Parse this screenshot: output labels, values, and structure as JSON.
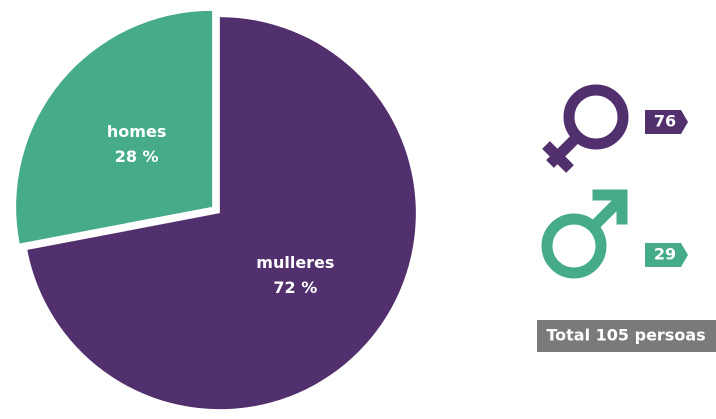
{
  "chart_data": {
    "type": "pie",
    "categories": [
      "homes",
      "mulleres"
    ],
    "values": [
      28,
      72
    ],
    "value_labels": [
      "28 %",
      "72 %"
    ],
    "colors": [
      "#45ab8a",
      "#52306e"
    ]
  },
  "counts": [
    76,
    29
  ],
  "total_label": "Total 105 persoas"
}
